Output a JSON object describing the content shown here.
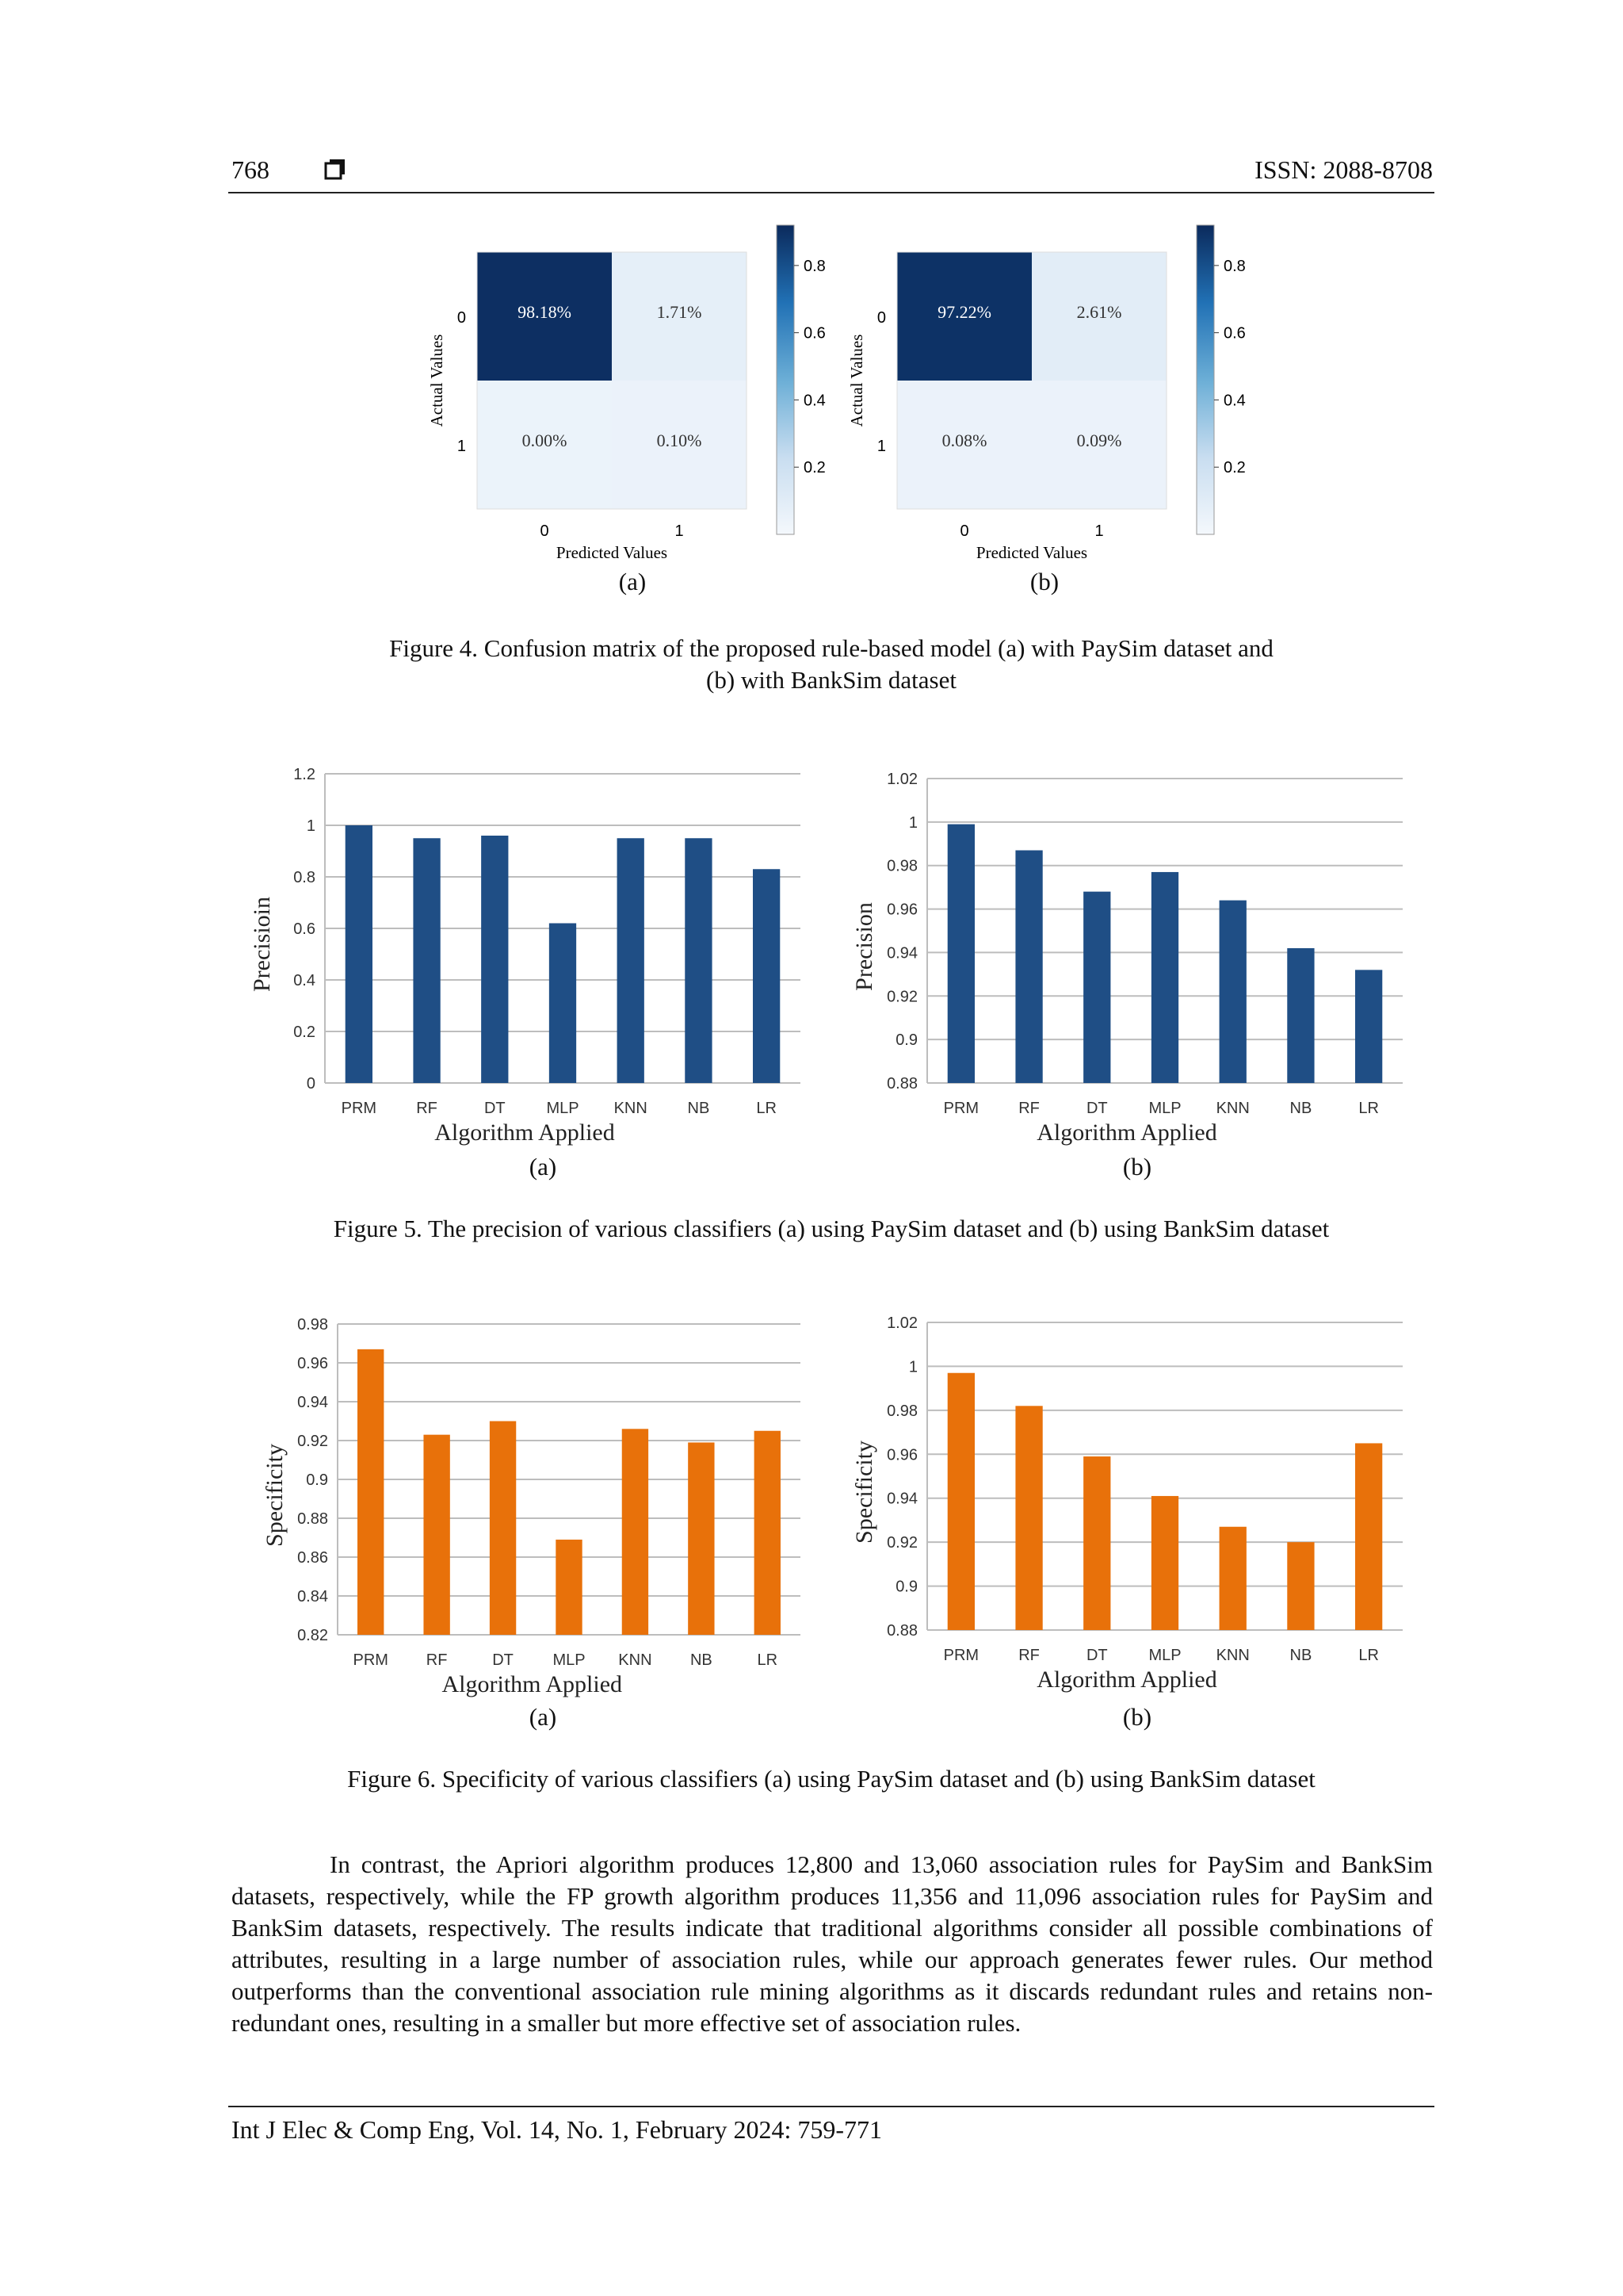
{
  "header": {
    "page_number": "768",
    "issn": "ISSN: 2088-8708"
  },
  "figure4": {
    "caption_line1": "Figure 4. Confusion matrix of the proposed rule-based model (a) with PaySim dataset and",
    "caption_line2": "(b) with BankSim dataset",
    "panels": [
      {
        "label": "(a)",
        "ylabel": "Actual Values",
        "xlabel": "Predicted Values",
        "row_ticks": [
          "0",
          "1"
        ],
        "col_ticks": [
          "0",
          "1"
        ],
        "cells": [
          [
            "98.18%",
            "1.71%"
          ],
          [
            "0.00%",
            "0.10%"
          ]
        ],
        "values": [
          [
            0.9818,
            0.0171
          ],
          [
            0.0,
            0.001
          ]
        ],
        "colorbar_ticks": [
          "0.8",
          "0.6",
          "0.4",
          "0.2"
        ]
      },
      {
        "label": "(b)",
        "ylabel": "Actual Values",
        "xlabel": "Predicted Values",
        "row_ticks": [
          "0",
          "1"
        ],
        "col_ticks": [
          "0",
          "1"
        ],
        "cells": [
          [
            "97.22%",
            "2.61%"
          ],
          [
            "0.08%",
            "0.09%"
          ]
        ],
        "values": [
          [
            0.9722,
            0.0261
          ],
          [
            0.0008,
            0.0009
          ]
        ],
        "colorbar_ticks": [
          "0.8",
          "0.6",
          "0.4",
          "0.2"
        ]
      }
    ]
  },
  "figure5": {
    "caption": "Figure 5. The precision of various classifiers (a) using PaySim dataset and (b) using BankSim dataset",
    "color": "#1f4e85"
  },
  "figure6": {
    "caption": "Figure 6. Specificity of various classifiers (a) using PaySim dataset and (b) using BankSim dataset",
    "color": "#e8710a"
  },
  "chart_data": [
    {
      "type": "bar",
      "figure": "5",
      "label": "(a)",
      "categories": [
        "PRM",
        "RF",
        "DT",
        "MLP",
        "KNN",
        "NB",
        "LR"
      ],
      "values": [
        1.0,
        0.95,
        0.96,
        0.62,
        0.95,
        0.95,
        0.83
      ],
      "ylim": [
        0,
        1.2
      ],
      "yticks": [
        "0",
        "0.2",
        "0.4",
        "0.6",
        "0.8",
        "1",
        "1.2"
      ],
      "xlabel": "Algorithm Applied",
      "ylabel": "Precisioin",
      "grid": true
    },
    {
      "type": "bar",
      "figure": "5",
      "label": "(b)",
      "categories": [
        "PRM",
        "RF",
        "DT",
        "MLP",
        "KNN",
        "NB",
        "LR"
      ],
      "values": [
        0.999,
        0.987,
        0.968,
        0.977,
        0.964,
        0.942,
        0.932
      ],
      "ylim": [
        0.88,
        1.02
      ],
      "yticks": [
        "0.88",
        "0.9",
        "0.92",
        "0.94",
        "0.96",
        "0.98",
        "1",
        "1.02"
      ],
      "xlabel": "Algorithm Applied",
      "ylabel": "Precision",
      "grid": true
    },
    {
      "type": "bar",
      "figure": "6",
      "label": "(a)",
      "categories": [
        "PRM",
        "RF",
        "DT",
        "MLP",
        "KNN",
        "NB",
        "LR"
      ],
      "values": [
        0.967,
        0.923,
        0.93,
        0.869,
        0.926,
        0.919,
        0.925
      ],
      "ylim": [
        0.82,
        0.98
      ],
      "yticks": [
        "0.82",
        "0.84",
        "0.86",
        "0.88",
        "0.9",
        "0.92",
        "0.94",
        "0.96",
        "0.98"
      ],
      "xlabel": "Algorithm Applied",
      "ylabel": "Specificity",
      "grid": true
    },
    {
      "type": "bar",
      "figure": "6",
      "label": "(b)",
      "categories": [
        "PRM",
        "RF",
        "DT",
        "MLP",
        "KNN",
        "NB",
        "LR"
      ],
      "values": [
        0.997,
        0.982,
        0.959,
        0.941,
        0.927,
        0.92,
        0.965
      ],
      "ylim": [
        0.88,
        1.02
      ],
      "yticks": [
        "0.88",
        "0.9",
        "0.92",
        "0.94",
        "0.96",
        "0.98",
        "1",
        "1.02"
      ],
      "xlabel": "Algorithm Applied",
      "ylabel": "Specificity",
      "grid": true
    }
  ],
  "body_text": "In contrast, the Apriori algorithm produces 12,800 and 13,060 association rules for PaySim and BankSim datasets, respectively, while the FP growth algorithm produces 11,356 and 11,096 association rules for PaySim and BankSim datasets, respectively. The results indicate that traditional algorithms consider all possible combinations of attributes, resulting in a large number of association rules, while our approach generates fewer rules. Our method outperforms than the conventional association rule mining algorithms as it discards redundant rules and retains non-redundant ones, resulting in a smaller but more effective set of association rules.",
  "footer": "Int J Elec & Comp Eng, Vol. 14, No. 1, February 2024: 759-771"
}
